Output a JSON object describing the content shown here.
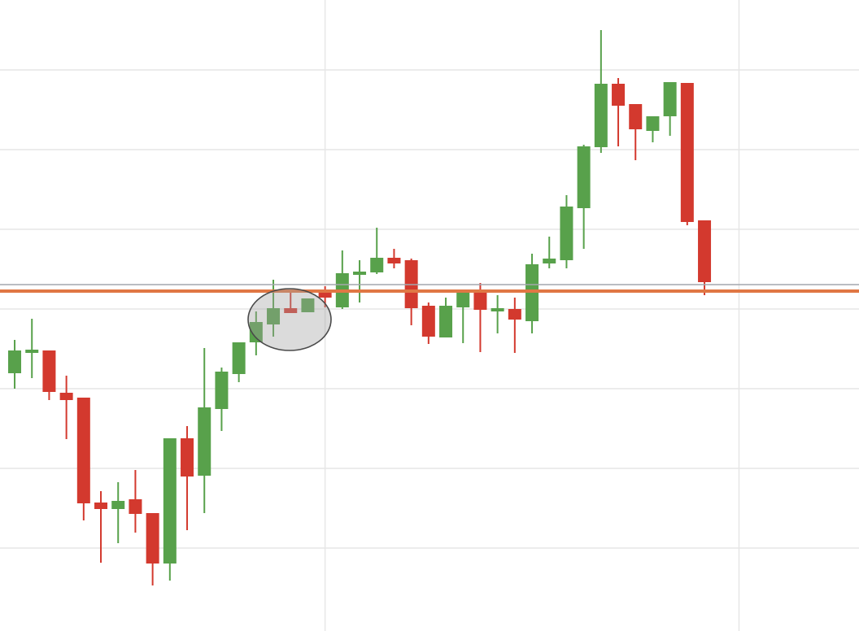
{
  "chart_data": {
    "type": "candlestick",
    "categories": [
      null,
      null,
      null,
      null,
      null,
      null,
      null,
      null,
      null,
      null,
      null,
      null,
      null,
      null,
      null,
      null,
      null,
      null,
      null,
      null,
      null,
      null,
      null,
      null,
      null,
      null,
      null,
      null,
      null,
      null,
      null,
      null,
      null,
      null,
      null,
      null,
      null,
      null,
      null,
      null,
      null
    ],
    "open": [
      317,
      342,
      345,
      293,
      287,
      158,
      150,
      162,
      145,
      83,
      237,
      191,
      273,
      316,
      355,
      377,
      397,
      392,
      420,
      398,
      438,
      441,
      459,
      456,
      400,
      361,
      398,
      416,
      393,
      396,
      381,
      452,
      456,
      520,
      595,
      673,
      648,
      615,
      633,
      674,
      505
    ],
    "high": [
      358,
      384,
      345,
      314,
      287,
      172,
      183,
      198,
      145,
      237,
      252,
      348,
      324,
      355,
      393,
      432,
      416,
      409,
      424,
      468,
      456,
      496,
      470,
      458,
      404,
      410,
      420,
      428,
      413,
      410,
      464,
      485,
      536,
      598,
      739,
      680,
      648,
      633,
      675,
      674,
      505
    ],
    "low": [
      298,
      311,
      284,
      236,
      136,
      84,
      108,
      121,
      56,
      62,
      124,
      145,
      246,
      306,
      339,
      362,
      391,
      392,
      398,
      396,
      404,
      439,
      446,
      376,
      353,
      361,
      354,
      343,
      366,
      342,
      366,
      446,
      446,
      470,
      588,
      596,
      579,
      601,
      609,
      499,
      413
    ],
    "close": [
      345,
      346,
      294,
      284,
      157,
      150,
      160,
      144,
      83,
      237,
      190,
      275,
      319,
      355,
      380,
      397,
      391,
      409,
      410,
      440,
      442,
      459,
      452,
      397,
      362,
      400,
      416,
      395,
      397,
      383,
      451,
      458,
      522,
      596,
      673,
      646,
      617,
      633,
      675,
      503,
      429
    ],
    "up_color": "#58a14b",
    "down_color": "#d3392e",
    "xlim": [
      -0.85,
      48.96
    ],
    "xticks": [
      18,
      42
    ],
    "ylim": [
      0,
      776
    ],
    "yticks": [
      102,
      200,
      298,
      396,
      494,
      592,
      690
    ],
    "grid": true,
    "hlines": [
      {
        "value": 426,
        "color": "#a3a7ad"
      },
      {
        "value": 418,
        "color": "#e07744"
      }
    ]
  }
}
